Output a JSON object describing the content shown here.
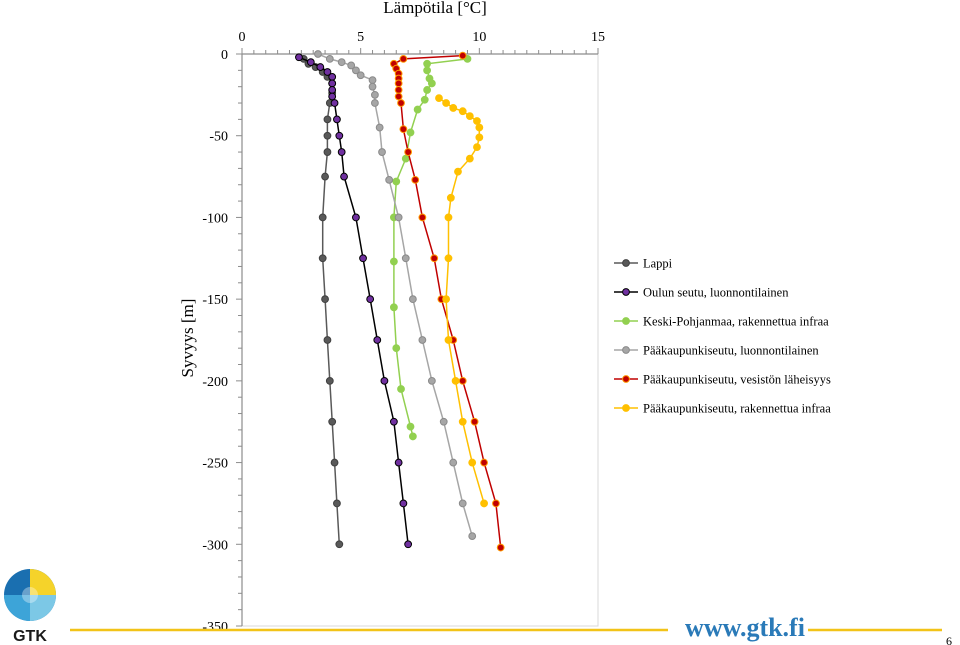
{
  "chart_data": {
    "type": "line",
    "title": "Lämpötila [°C]",
    "xlabel": "",
    "ylabel": "Syvyys [m]",
    "xlim": [
      0,
      15
    ],
    "ylim": [
      -350,
      0
    ],
    "x_ticks": [
      "0",
      "5",
      "10",
      "15"
    ],
    "y_ticks": [
      "0",
      "-50",
      "-100",
      "-150",
      "-200",
      "-250",
      "-300",
      "-350"
    ],
    "x_axis_position": "top",
    "grid": false,
    "legend_position": "right",
    "series": [
      {
        "name": "Lappi",
        "color": "#595959",
        "marker_fill": "#595959",
        "marker_edge": "#404040",
        "points": [
          [
            2.6,
            -3
          ],
          [
            2.8,
            -6
          ],
          [
            3.1,
            -8
          ],
          [
            3.4,
            -11
          ],
          [
            3.6,
            -14
          ],
          [
            3.8,
            -18
          ],
          [
            3.8,
            -24
          ],
          [
            3.7,
            -30
          ],
          [
            3.6,
            -40
          ],
          [
            3.6,
            -50
          ],
          [
            3.6,
            -60
          ],
          [
            3.5,
            -75
          ],
          [
            3.4,
            -100
          ],
          [
            3.4,
            -125
          ],
          [
            3.5,
            -150
          ],
          [
            3.6,
            -175
          ],
          [
            3.7,
            -200
          ],
          [
            3.8,
            -225
          ],
          [
            3.9,
            -250
          ],
          [
            4.0,
            -275
          ],
          [
            4.1,
            -300
          ]
        ]
      },
      {
        "name": "Oulun seutu, luonnontilainen",
        "color": "#000000",
        "marker_fill": "#7030a0",
        "marker_edge": "#000000",
        "points": [
          [
            2.4,
            -2
          ],
          [
            2.9,
            -5
          ],
          [
            3.3,
            -8
          ],
          [
            3.6,
            -11
          ],
          [
            3.8,
            -14
          ],
          [
            3.8,
            -18
          ],
          [
            3.8,
            -22
          ],
          [
            3.8,
            -26
          ],
          [
            3.9,
            -30
          ],
          [
            4.0,
            -40
          ],
          [
            4.1,
            -50
          ],
          [
            4.2,
            -60
          ],
          [
            4.3,
            -75
          ],
          [
            4.8,
            -100
          ],
          [
            5.1,
            -125
          ],
          [
            5.4,
            -150
          ],
          [
            5.7,
            -175
          ],
          [
            6.0,
            -200
          ],
          [
            6.4,
            -225
          ],
          [
            6.6,
            -250
          ],
          [
            6.8,
            -275
          ],
          [
            7.0,
            -300
          ]
        ]
      },
      {
        "name": "Keski-Pohjanmaa, rakennettua infraa",
        "color": "#92d050",
        "marker_fill": "#92d050",
        "marker_edge": "#92d050",
        "points": [
          [
            9.5,
            -3
          ],
          [
            7.8,
            -6
          ],
          [
            7.8,
            -10
          ],
          [
            7.9,
            -15
          ],
          [
            8.0,
            -18
          ],
          [
            7.8,
            -22
          ],
          [
            7.7,
            -28
          ],
          [
            7.4,
            -34
          ],
          [
            7.1,
            -48
          ],
          [
            6.9,
            -64
          ],
          [
            6.5,
            -78
          ],
          [
            6.4,
            -100
          ],
          [
            6.4,
            -127
          ],
          [
            6.4,
            -155
          ],
          [
            6.5,
            -180
          ],
          [
            6.7,
            -205
          ],
          [
            7.1,
            -228
          ],
          [
            7.2,
            -234
          ]
        ]
      },
      {
        "name": "Pääkaupunkiseutu, luonnontilainen",
        "color": "#a6a6a6",
        "marker_fill": "#a6a6a6",
        "marker_edge": "#8a8a8a",
        "points": [
          [
            3.2,
            0
          ],
          [
            3.7,
            -3
          ],
          [
            4.2,
            -5
          ],
          [
            4.6,
            -7
          ],
          [
            4.8,
            -10
          ],
          [
            5.0,
            -13
          ],
          [
            5.5,
            -16
          ],
          [
            5.5,
            -20
          ],
          [
            5.6,
            -25
          ],
          [
            5.6,
            -30
          ],
          [
            5.8,
            -45
          ],
          [
            5.9,
            -60
          ],
          [
            6.2,
            -77
          ],
          [
            6.6,
            -100
          ],
          [
            6.9,
            -125
          ],
          [
            7.2,
            -150
          ],
          [
            7.6,
            -175
          ],
          [
            8.0,
            -200
          ],
          [
            8.5,
            -225
          ],
          [
            8.9,
            -250
          ],
          [
            9.3,
            -275
          ],
          [
            9.7,
            -295
          ]
        ]
      },
      {
        "name": "Pääkaupunkiseutu, vesistön läheisyys",
        "color": "#c00000",
        "marker_fill": "#c00000",
        "marker_edge": "#ff9900",
        "points": [
          [
            9.3,
            -1
          ],
          [
            6.8,
            -3
          ],
          [
            6.4,
            -6
          ],
          [
            6.5,
            -9
          ],
          [
            6.6,
            -12
          ],
          [
            6.6,
            -15
          ],
          [
            6.6,
            -18
          ],
          [
            6.6,
            -22
          ],
          [
            6.6,
            -26
          ],
          [
            6.7,
            -30
          ],
          [
            6.8,
            -46
          ],
          [
            7.0,
            -60
          ],
          [
            7.3,
            -77
          ],
          [
            7.6,
            -100
          ],
          [
            8.1,
            -125
          ],
          [
            8.4,
            -150
          ],
          [
            8.9,
            -175
          ],
          [
            9.3,
            -200
          ],
          [
            9.8,
            -225
          ],
          [
            10.2,
            -250
          ],
          [
            10.7,
            -275
          ],
          [
            10.9,
            -302
          ]
        ]
      },
      {
        "name": "Pääkaupunkiseutu, rakennettua infraa",
        "color": "#ffc000",
        "marker_fill": "#ffc000",
        "marker_edge": "#ffc000",
        "points": [
          [
            8.3,
            -27
          ],
          [
            8.6,
            -30
          ],
          [
            8.9,
            -33
          ],
          [
            9.3,
            -35
          ],
          [
            9.6,
            -38
          ],
          [
            9.9,
            -41
          ],
          [
            10.0,
            -45
          ],
          [
            10.0,
            -51
          ],
          [
            9.9,
            -57
          ],
          [
            9.6,
            -64
          ],
          [
            9.1,
            -72
          ],
          [
            8.8,
            -88
          ],
          [
            8.7,
            -100
          ],
          [
            8.7,
            -125
          ],
          [
            8.6,
            -150
          ],
          [
            8.7,
            -175
          ],
          [
            9.0,
            -200
          ],
          [
            9.3,
            -225
          ],
          [
            9.7,
            -250
          ],
          [
            10.2,
            -275
          ]
        ]
      }
    ]
  },
  "footer": {
    "logo_text": "GTK",
    "website": "www.gtk.fi",
    "page_number": "6"
  }
}
